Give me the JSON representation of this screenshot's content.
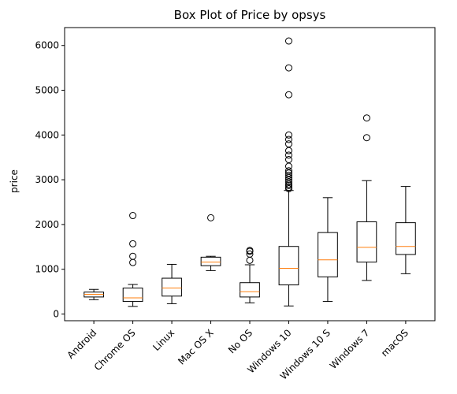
{
  "chart_data": {
    "type": "box",
    "title": "Box Plot of Price by opsys",
    "xlabel": "",
    "ylabel": "price",
    "ylim": [
      -150,
      6400
    ],
    "yticks": [
      0,
      1000,
      2000,
      3000,
      4000,
      5000,
      6000
    ],
    "grid": false,
    "categories": [
      "Android",
      "Chrome OS",
      "Linux",
      "Mac OS X",
      "No OS",
      "Windows 10",
      "Windows 10 S",
      "Windows 7",
      "macOS"
    ],
    "boxes": [
      {
        "whisker_low": 320,
        "q1": 380,
        "median": 440,
        "q3": 490,
        "whisker_high": 550,
        "outliers": []
      },
      {
        "whisker_low": 170,
        "q1": 280,
        "median": 360,
        "q3": 580,
        "whisker_high": 660,
        "outliers": [
          1150,
          1290,
          1570,
          2200
        ]
      },
      {
        "whisker_low": 230,
        "q1": 400,
        "median": 580,
        "q3": 800,
        "whisker_high": 1110,
        "outliers": []
      },
      {
        "whisker_low": 970,
        "q1": 1080,
        "median": 1160,
        "q3": 1270,
        "whisker_high": 1290,
        "outliers": [
          2150
        ]
      },
      {
        "whisker_low": 250,
        "q1": 380,
        "median": 500,
        "q3": 700,
        "whisker_high": 1100,
        "outliers": [
          1200,
          1340,
          1400,
          1420
        ]
      },
      {
        "whisker_low": 180,
        "q1": 650,
        "median": 1020,
        "q3": 1510,
        "whisker_high": 2760,
        "outliers": [
          2800,
          2830,
          2870,
          2900,
          2950,
          3000,
          3050,
          3100,
          3150,
          3200,
          3300,
          3450,
          3550,
          3650,
          3800,
          3900,
          4000,
          4900,
          5500,
          6100
        ]
      },
      {
        "whisker_low": 280,
        "q1": 830,
        "median": 1210,
        "q3": 1820,
        "whisker_high": 2600,
        "outliers": []
      },
      {
        "whisker_low": 750,
        "q1": 1160,
        "median": 1490,
        "q3": 2060,
        "whisker_high": 2980,
        "outliers": [
          3940,
          4380
        ]
      },
      {
        "whisker_low": 900,
        "q1": 1330,
        "median": 1510,
        "q3": 2040,
        "whisker_high": 2850,
        "outliers": []
      }
    ],
    "colors": {
      "box": "#000000",
      "median": "#ff7f0e",
      "outlier": "#000000"
    }
  }
}
